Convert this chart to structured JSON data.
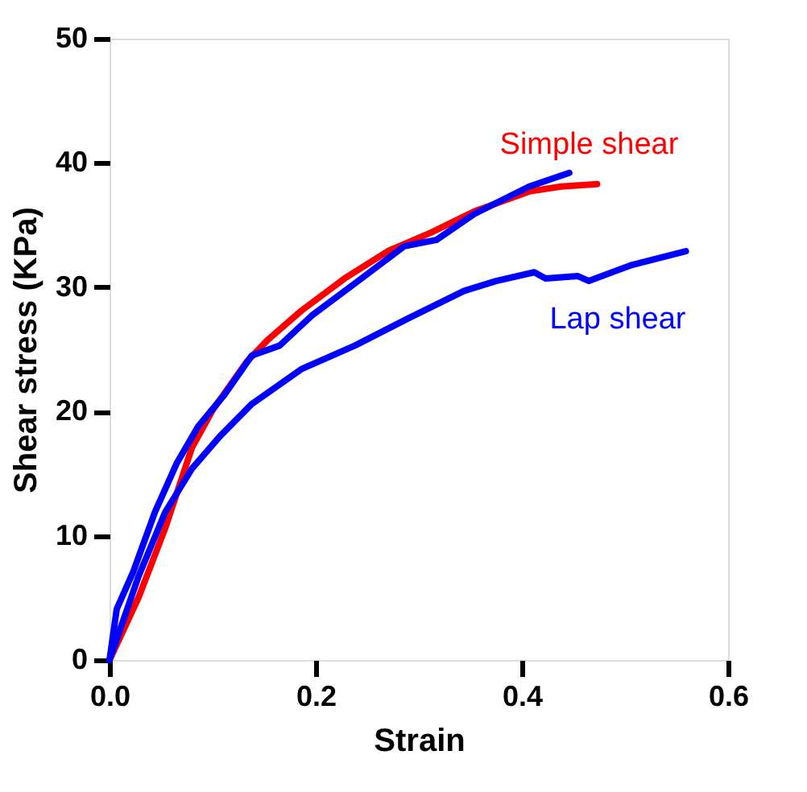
{
  "chart_data": {
    "type": "line",
    "xlabel": "Strain",
    "ylabel": "Shear stress (KPa)",
    "xlim": [
      0,
      0.6
    ],
    "xticks": [
      {
        "value": 0,
        "label": "0.0"
      },
      0.2,
      0.4,
      0.6
    ],
    "ylim": [
      0,
      50
    ],
    "yticks": [
      0,
      10,
      20,
      30,
      40,
      50
    ],
    "grid": false,
    "legend": false,
    "marker": "none",
    "line_style": "solid",
    "series": [
      {
        "name": "Simple shear",
        "color": "#ff0000",
        "x": [
          0,
          0.028,
          0.054,
          0.08,
          0.1,
          0.133,
          0.154,
          0.186,
          0.228,
          0.27,
          0.312,
          0.354,
          0.407,
          0.438,
          0.473
        ],
        "values": [
          0,
          5.0,
          10.6,
          17.1,
          20.1,
          24.0,
          25.8,
          28.1,
          30.7,
          32.9,
          34.4,
          36.1,
          37.7,
          38.1,
          38.3
        ]
      },
      {
        "color": "#0000ff",
        "x": [
          0,
          0.007,
          0.023,
          0.044,
          0.065,
          0.086,
          0.112,
          0.138,
          0.165,
          0.196,
          0.238,
          0.286,
          0.317,
          0.354,
          0.407,
          0.446
        ],
        "values": [
          0,
          4.1,
          7.1,
          11.9,
          15.8,
          18.8,
          21.4,
          24.5,
          25.3,
          27.7,
          30.3,
          33.3,
          33.8,
          35.9,
          38.1,
          39.2
        ]
      },
      {
        "name": "Lap shear",
        "color": "#0000ff",
        "x": [
          0,
          0.028,
          0.054,
          0.08,
          0.107,
          0.138,
          0.186,
          0.238,
          0.29,
          0.344,
          0.375,
          0.412,
          0.423,
          0.454,
          0.465,
          0.507,
          0.559
        ],
        "values": [
          0,
          6.7,
          11.9,
          15.4,
          18.0,
          20.6,
          23.4,
          25.3,
          27.5,
          29.7,
          30.5,
          31.2,
          30.7,
          30.9,
          30.5,
          31.8,
          32.9
        ]
      }
    ]
  }
}
